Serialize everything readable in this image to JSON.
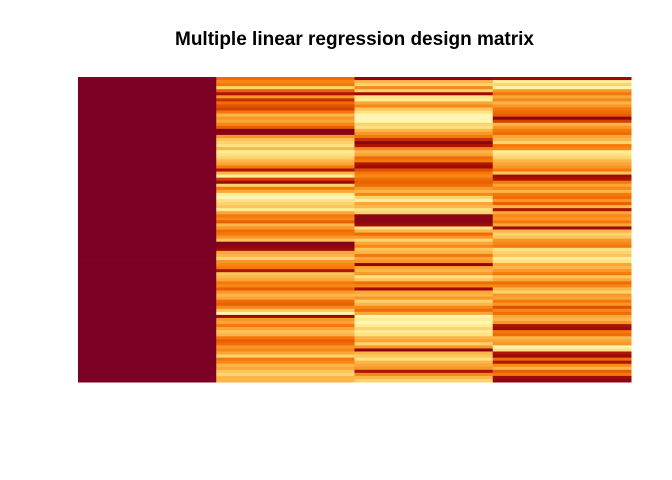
{
  "chart_data": {
    "type": "heatmap",
    "title": "Multiple linear regression design matrix",
    "xlabel": "",
    "ylabel": "",
    "n_rows": 100,
    "n_cols": 4,
    "value_range": [
      0,
      1
    ],
    "colormap": [
      "#FFFFC8",
      "#FDE88C",
      "#FCC55A",
      "#F99E2E",
      "#F5790A",
      "#E55A00",
      "#C73000",
      "#A50E00",
      "#7D0025"
    ],
    "columns": [
      {
        "values": [
          1,
          1,
          1,
          1,
          1,
          1,
          1,
          1,
          1,
          1,
          1,
          1,
          1,
          1,
          1,
          1,
          1,
          1,
          1,
          1,
          1,
          1,
          1,
          1,
          1,
          1,
          1,
          1,
          1,
          1,
          1,
          1,
          1,
          1,
          1,
          1,
          1,
          1,
          1,
          1,
          1,
          1,
          1,
          1,
          1,
          1,
          1,
          1,
          1,
          1,
          1,
          1,
          1,
          1,
          1,
          1,
          1,
          1,
          1,
          1,
          1,
          1,
          1,
          1,
          1,
          1,
          1,
          1,
          1,
          1,
          1,
          1,
          1,
          1,
          1,
          1,
          1,
          1,
          1,
          1,
          1,
          1,
          1,
          1,
          1,
          1,
          1,
          1,
          1,
          1,
          1,
          1,
          1,
          1,
          1,
          1,
          1,
          1,
          1,
          1
        ]
      },
      {
        "values": [
          0.55,
          0.45,
          0.5,
          0.2,
          0.6,
          0.85,
          0.4,
          0.75,
          0.55,
          0.65,
          0.7,
          0.5,
          0.3,
          0.4,
          0.35,
          0.45,
          0.6,
          0.98,
          0.95,
          0.4,
          0.25,
          0.2,
          0.15,
          0.3,
          0.1,
          0.15,
          0.2,
          0.3,
          0.35,
          0.5,
          0.85,
          0.3,
          0.1,
          0.7,
          0.9,
          0.2,
          0.5,
          0.35,
          0.1,
          0.05,
          0.15,
          0.2,
          0.25,
          0.1,
          0.35,
          0.5,
          0.45,
          0.6,
          0.3,
          0.4,
          0.55,
          0.5,
          0.4,
          0.25,
          0.98,
          0.95,
          0.9,
          0.35,
          0.3,
          0.2,
          0.4,
          0.45,
          0.5,
          0.85,
          0.25,
          0.3,
          0.35,
          0.5,
          0.45,
          0.6,
          0.4,
          0.3,
          0.35,
          0.55,
          0.6,
          0.45,
          0.25,
          0.05,
          0.9,
          0.4,
          0.35,
          0.5,
          0.35,
          0.25,
          0.3,
          0.5,
          0.6,
          0.55,
          0.4,
          0.45,
          0.35,
          0.2,
          0.5,
          0.45,
          0.3,
          0.35,
          0.25,
          0.2,
          0.3,
          0.3
        ]
      },
      {
        "values": [
          0.95,
          0.3,
          0.2,
          0.45,
          0.2,
          0.9,
          0.15,
          0.1,
          0.35,
          0.45,
          0.25,
          0.15,
          0.05,
          0.05,
          0.05,
          0.2,
          0.15,
          0.3,
          0.4,
          0.5,
          0.75,
          0.95,
          0.85,
          0.45,
          0.3,
          0.35,
          0.55,
          0.5,
          0.85,
          0.9,
          0.65,
          0.5,
          0.45,
          0.55,
          0.6,
          0.55,
          0.4,
          0.3,
          0.45,
          0.2,
          0.1,
          0.35,
          0.3,
          0.15,
          0.2,
          0.95,
          0.95,
          0.95,
          0.9,
          0.15,
          0.3,
          0.55,
          0.4,
          0.2,
          0.35,
          0.45,
          0.25,
          0.3,
          0.5,
          0.35,
          0.4,
          0.95,
          0.35,
          0.3,
          0.4,
          0.15,
          0.25,
          0.55,
          0.45,
          0.9,
          0.35,
          0.3,
          0.4,
          0.2,
          0.3,
          0.45,
          0.55,
          0.35,
          0.05,
          0.1,
          0.05,
          0.1,
          0.2,
          0.1,
          0.15,
          0.3,
          0.35,
          0.2,
          0.4,
          0.95,
          0.3,
          0.25,
          0.15,
          0.3,
          0.35,
          0.4,
          0.85,
          0.45,
          0.3,
          0.2
        ]
      },
      {
        "values": [
          0.9,
          0.1,
          0.2,
          0.05,
          0.4,
          0.5,
          0.35,
          0.45,
          0.3,
          0.4,
          0.5,
          0.55,
          0.6,
          0.95,
          0.7,
          0.3,
          0.4,
          0.5,
          0.55,
          0.35,
          0.3,
          0.2,
          0.5,
          0.45,
          0.1,
          0.15,
          0.2,
          0.3,
          0.35,
          0.4,
          0.5,
          0.25,
          0.9,
          0.85,
          0.5,
          0.35,
          0.45,
          0.3,
          0.5,
          0.55,
          0.4,
          0.6,
          0.3,
          0.85,
          0.35,
          0.45,
          0.4,
          0.5,
          0.35,
          0.9,
          0.3,
          0.2,
          0.25,
          0.4,
          0.45,
          0.5,
          0.15,
          0.2,
          0.25,
          0.1,
          0.15,
          0.35,
          0.3,
          0.4,
          0.5,
          0.25,
          0.35,
          0.55,
          0.45,
          0.3,
          0.2,
          0.4,
          0.35,
          0.5,
          0.4,
          0.65,
          0.45,
          0.55,
          0.35,
          0.3,
          0.4,
          0.85,
          0.9,
          0.5,
          0.55,
          0.3,
          0.35,
          0.4,
          0.05,
          0.15,
          0.85,
          0.9,
          0.55,
          0.85,
          0.45,
          0.3,
          0.6,
          0.5,
          0.9,
          0.95
        ]
      }
    ],
    "legend": "none",
    "grid": false
  }
}
